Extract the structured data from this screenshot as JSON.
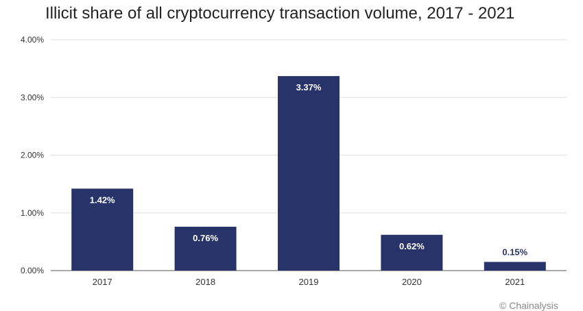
{
  "chart_data": {
    "type": "bar",
    "title": "Illicit share of all cryptocurrency transaction volume, 2017 - 2021",
    "categories": [
      "2017",
      "2018",
      "2019",
      "2020",
      "2021"
    ],
    "values": [
      1.42,
      0.76,
      3.37,
      0.62,
      0.15
    ],
    "data_labels": [
      "1.42%",
      "0.76%",
      "3.37%",
      "0.62%",
      "0.15%"
    ],
    "ylim": [
      0,
      4
    ],
    "yticks": [
      0,
      1,
      2,
      3,
      4
    ],
    "ytick_labels": [
      "0.00%",
      "1.00%",
      "2.00%",
      "3.00%",
      "4.00%"
    ],
    "xlabel": "",
    "ylabel": "",
    "grid": true,
    "bar_color": "#283469",
    "label_color_inside": "#ffffff",
    "label_color_outside": "#283469"
  },
  "credit": "© Chainalysis"
}
